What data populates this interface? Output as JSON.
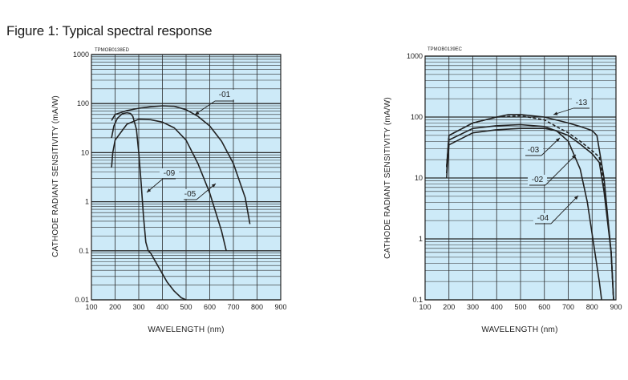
{
  "figure_title": "Figure 1: Typical spectral response",
  "colors": {
    "plot_bg": "#cdeaf8",
    "grid": "#2a2a2a",
    "curve": "#222222",
    "frame": "#222222"
  },
  "chart_data": [
    {
      "type": "line",
      "chart_code": "TPMOB0138ED",
      "xlabel": "WAVELENGTH (nm)",
      "ylabel": "CATHODE RADIANT SENSITIVITY (mA/W)",
      "xlim": [
        100,
        900
      ],
      "ylim": [
        0.01,
        1000
      ],
      "y_scale": "log",
      "grid": true,
      "x_ticks": [
        "100",
        "200",
        "300",
        "400",
        "500",
        "600",
        "700",
        "800",
        "900"
      ],
      "y_ticks": [
        "1000",
        "100",
        "10",
        "1",
        "0.1",
        "0.01"
      ],
      "series": [
        {
          "name": "-01",
          "x": [
            185,
            200,
            250,
            300,
            350,
            400,
            450,
            500,
            550,
            600,
            650,
            700,
            750,
            770
          ],
          "y": [
            45,
            60,
            72,
            80,
            86,
            90,
            88,
            75,
            55,
            35,
            17,
            6,
            1.2,
            0.35
          ]
        },
        {
          "name": "-09",
          "x": [
            185,
            195,
            210,
            230,
            250,
            265,
            275,
            290,
            300,
            310,
            320,
            330,
            340,
            350,
            380,
            420,
            450,
            480,
            500
          ],
          "y": [
            20,
            35,
            50,
            62,
            65,
            63,
            55,
            30,
            10,
            2.5,
            0.5,
            0.15,
            0.1,
            0.09,
            0.05,
            0.023,
            0.015,
            0.011,
            0.01
          ]
        },
        {
          "name": "-05",
          "x": [
            185,
            190,
            200,
            250,
            300,
            350,
            400,
            450,
            500,
            550,
            600,
            650,
            670
          ],
          "y": [
            5,
            10,
            18,
            38,
            48,
            47,
            42,
            32,
            18,
            6,
            1.5,
            0.25,
            0.1
          ]
        }
      ],
      "annotations": [
        "-01",
        "-09",
        "-05"
      ]
    },
    {
      "type": "line",
      "chart_code": "TPMOB0139EC",
      "xlabel": "WAVELENGTH (nm)",
      "ylabel": "CATHODE RADIANT SENSITIVITY (mA/W)",
      "xlim": [
        100,
        900
      ],
      "ylim": [
        0.1,
        1000
      ],
      "y_scale": "log",
      "grid": true,
      "x_ticks": [
        "100",
        "200",
        "300",
        "400",
        "500",
        "600",
        "700",
        "800",
        "900"
      ],
      "y_ticks": [
        "1000",
        "100",
        "10",
        "1",
        "0.1"
      ],
      "series": [
        {
          "name": "-13",
          "x": [
            190,
            200,
            300,
            400,
            450,
            500,
            600,
            700,
            750,
            800,
            820,
            850,
            880,
            890
          ],
          "y": [
            15,
            50,
            80,
            100,
            110,
            110,
            100,
            80,
            70,
            60,
            50,
            10,
            0.6,
            0.1
          ]
        },
        {
          "name": "-03",
          "x": [
            190,
            200,
            300,
            400,
            500,
            600,
            650,
            700,
            750,
            800,
            830,
            850,
            880,
            890
          ],
          "y": [
            15,
            50,
            80,
            100,
            105,
            90,
            70,
            55,
            40,
            28,
            22,
            8,
            0.6,
            0.1
          ]
        },
        {
          "name": "-02",
          "x": [
            190,
            200,
            300,
            400,
            500,
            600,
            700,
            750,
            800,
            830,
            850,
            880,
            890
          ],
          "y": [
            12,
            42,
            65,
            72,
            75,
            70,
            50,
            36,
            25,
            18,
            6,
            0.6,
            0.1
          ]
        },
        {
          "name": "-04",
          "x": [
            190,
            200,
            300,
            400,
            500,
            600,
            650,
            700,
            750,
            780,
            800,
            830,
            840
          ],
          "y": [
            10,
            35,
            55,
            62,
            65,
            65,
            60,
            40,
            14,
            4,
            1.2,
            0.2,
            0.1
          ]
        }
      ],
      "annotations": [
        "-13",
        "-03",
        "-02",
        "-04"
      ]
    }
  ]
}
